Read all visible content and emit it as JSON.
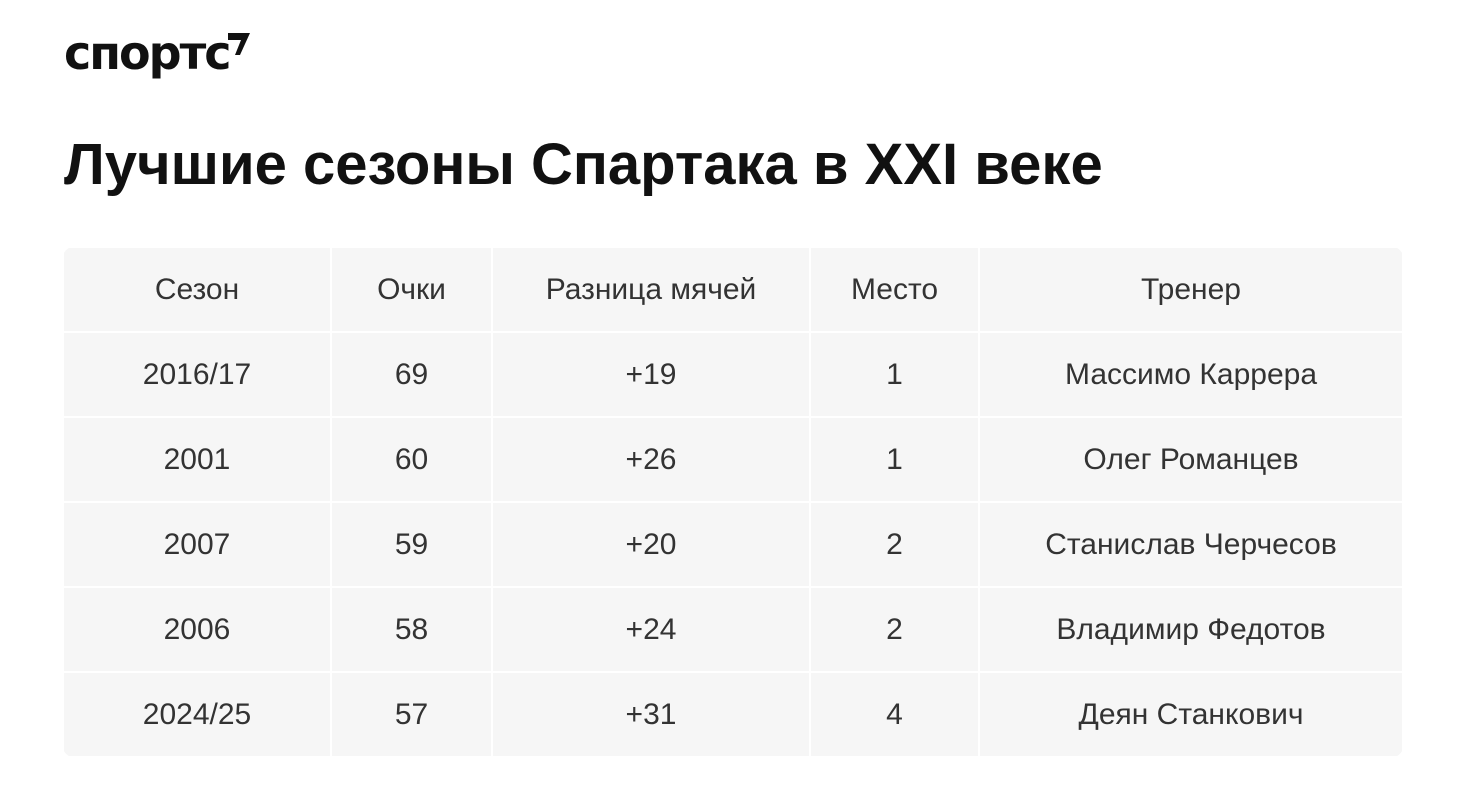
{
  "logo": {
    "text": "спортс"
  },
  "title": "Лучшие сезоны Спартака в XXI веке",
  "table": {
    "headers": [
      "Сезон",
      "Очки",
      "Разница мячей",
      "Место",
      "Тренер"
    ],
    "rows": [
      [
        "2016/17",
        "69",
        "+19",
        "1",
        "Массимо Каррера"
      ],
      [
        "2001",
        "60",
        "+26",
        "1",
        "Олег Романцев"
      ],
      [
        "2007",
        "59",
        "+20",
        "2",
        "Станислав Черчесов"
      ],
      [
        "2006",
        "58",
        "+24",
        "2",
        "Владимир Федотов"
      ],
      [
        "2024/25",
        "57",
        "+31",
        "4",
        "Деян Станкович"
      ]
    ]
  }
}
